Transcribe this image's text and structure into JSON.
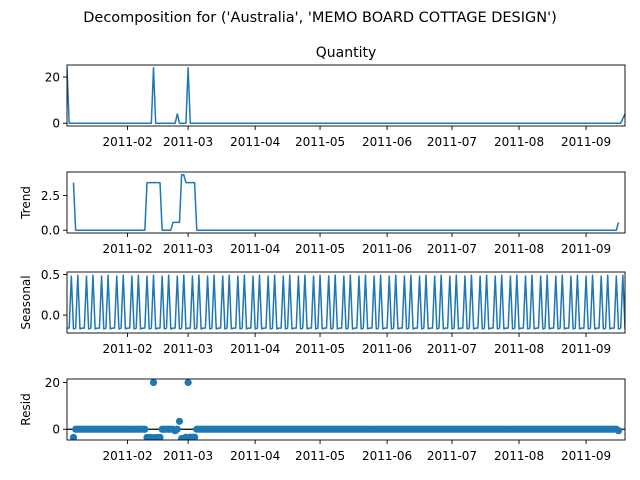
{
  "figure": {
    "suptitle": "Decomposition for ('Australia', 'MEMO BOARD COTTAGE DESIGN')"
  },
  "chart_data": [
    {
      "type": "line",
      "title": "Quantity",
      "ylabel": "",
      "x_tick_labels": [
        "2011-02",
        "2011-03",
        "2011-04",
        "2011-05",
        "2011-06",
        "2011-07",
        "2011-08",
        "2011-09"
      ],
      "y_ticks": [
        0,
        20
      ],
      "ylim": [
        -1.2,
        25.2
      ],
      "xlim": [
        "2011-01-04",
        "2011-09-19"
      ],
      "line_color": "#1f77b4",
      "series": [
        {
          "points": [
            [
              "2011-01-04",
              24
            ],
            [
              "2011-01-05",
              0
            ],
            [
              "2011-02-12",
              0
            ],
            [
              "2011-02-13",
              24
            ],
            [
              "2011-02-14",
              0
            ],
            [
              "2011-02-23",
              0
            ],
            [
              "2011-02-24",
              4
            ],
            [
              "2011-02-25",
              0
            ],
            [
              "2011-02-28",
              0
            ],
            [
              "2011-03-01",
              24
            ],
            [
              "2011-03-02",
              0
            ],
            [
              "2011-09-17",
              0
            ],
            [
              "2011-09-19",
              4
            ]
          ]
        }
      ]
    },
    {
      "type": "line",
      "title": "",
      "ylabel": "Trend",
      "x_tick_labels": [
        "2011-02",
        "2011-03",
        "2011-04",
        "2011-05",
        "2011-06",
        "2011-07",
        "2011-08",
        "2011-09"
      ],
      "y_ticks": [
        0.0,
        2.5
      ],
      "y_tick_labels": [
        "0.0",
        "2.5"
      ],
      "ylim": [
        -0.2,
        4.2
      ],
      "xlim": [
        "2011-01-04",
        "2011-09-19"
      ],
      "line_color": "#1f77b4",
      "series": [
        {
          "points": [
            [
              "2011-01-07",
              3.43
            ],
            [
              "2011-01-08",
              0
            ],
            [
              "2011-02-09",
              0
            ],
            [
              "2011-02-10",
              3.43
            ],
            [
              "2011-02-16",
              3.43
            ],
            [
              "2011-02-17",
              0
            ],
            [
              "2011-02-21",
              0
            ],
            [
              "2011-02-22",
              0.57
            ],
            [
              "2011-02-25",
              0.57
            ],
            [
              "2011-02-26",
              4
            ],
            [
              "2011-02-27",
              4
            ],
            [
              "2011-02-28",
              3.43
            ],
            [
              "2011-03-04",
              3.43
            ],
            [
              "2011-03-05",
              0
            ],
            [
              "2011-09-15",
              0
            ],
            [
              "2011-09-16",
              0.57
            ]
          ]
        }
      ]
    },
    {
      "type": "line",
      "title": "",
      "ylabel": "Seasonal",
      "x_tick_labels": [
        "2011-02",
        "2011-03",
        "2011-04",
        "2011-05",
        "2011-06",
        "2011-07",
        "2011-08",
        "2011-09"
      ],
      "y_ticks": [
        0.0,
        0.5
      ],
      "y_tick_labels": [
        "0.0",
        "0.5"
      ],
      "ylim": [
        -0.22,
        0.53
      ],
      "xlim": [
        "2011-01-04",
        "2011-09-19"
      ],
      "line_color": "#1f77b4",
      "period_days": 7,
      "pattern": [
        -0.16,
        -0.16,
        0.48,
        -0.17,
        -0.16,
        0.49,
        -0.17
      ],
      "start": "2011-01-04",
      "end": "2011-09-19"
    },
    {
      "type": "scatter",
      "title": "",
      "ylabel": "Resid",
      "x_tick_labels": [
        "2011-02",
        "2011-03",
        "2011-04",
        "2011-05",
        "2011-06",
        "2011-07",
        "2011-08",
        "2011-09"
      ],
      "y_ticks": [
        0,
        20
      ],
      "ylim": [
        -4.6,
        21.5
      ],
      "xlim": [
        "2011-01-04",
        "2011-09-19"
      ],
      "marker_color": "#1f77b4",
      "zero_line": true,
      "baseline": 0,
      "start": "2011-01-07",
      "end": "2011-09-16",
      "outliers": [
        [
          "2011-01-07",
          -3.5
        ],
        [
          "2011-02-10",
          -3.5
        ],
        [
          "2011-02-11",
          -3.5
        ],
        [
          "2011-02-12",
          -3.5
        ],
        [
          "2011-02-13",
          20
        ],
        [
          "2011-02-14",
          -3.5
        ],
        [
          "2011-02-15",
          -3.5
        ],
        [
          "2011-02-16",
          -3.5
        ],
        [
          "2011-02-23",
          -0.6
        ],
        [
          "2011-02-25",
          3.4
        ],
        [
          "2011-02-26",
          -4
        ],
        [
          "2011-02-27",
          -4
        ],
        [
          "2011-02-28",
          -3.4
        ],
        [
          "2011-03-01",
          20
        ],
        [
          "2011-03-02",
          -3.4
        ],
        [
          "2011-03-03",
          -3.4
        ],
        [
          "2011-03-04",
          -3.4
        ],
        [
          "2011-09-16",
          -0.6
        ]
      ]
    }
  ]
}
